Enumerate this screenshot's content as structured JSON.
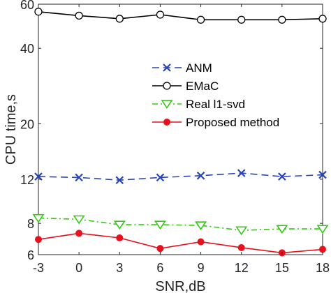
{
  "chart_data": {
    "type": "line",
    "title": "",
    "xlabel": "SNR,dB",
    "ylabel": "CPU time,s",
    "x": [
      -3,
      0,
      3,
      6,
      9,
      12,
      15,
      18
    ],
    "xticks": [
      -3,
      0,
      3,
      6,
      9,
      12,
      15,
      18
    ],
    "xtick_labels": [
      "-3",
      "0",
      "3",
      "6",
      "9",
      "12",
      "15",
      "18"
    ],
    "xlim": [
      -3,
      18
    ],
    "yscale": "log",
    "ylim": [
      6,
      60
    ],
    "yticks": [
      6,
      8,
      12,
      20,
      40,
      60
    ],
    "ytick_labels": [
      "6",
      "8",
      "12",
      "20",
      "40",
      "60"
    ],
    "grid": false,
    "legend_position": "center-right",
    "series": [
      {
        "name": "ANM",
        "values": [
          12.3,
          12.2,
          11.9,
          12.2,
          12.4,
          12.7,
          12.3,
          12.5
        ],
        "color": "#2a45b8",
        "line_style": "dashed",
        "marker": "x"
      },
      {
        "name": "EMaC",
        "values": [
          56,
          54,
          52.5,
          54.5,
          52,
          52,
          52,
          52.5
        ],
        "color": "#000000",
        "line_style": "solid",
        "marker": "open-circle"
      },
      {
        "name": "Real l1-svd",
        "values": [
          8.4,
          8.3,
          7.9,
          7.9,
          7.85,
          7.5,
          7.6,
          7.6
        ],
        "color": "#35c814",
        "line_style": "dash-dot",
        "marker": "open-triangle-down"
      },
      {
        "name": "Proposed method",
        "values": [
          6.9,
          7.3,
          7.0,
          6.35,
          6.75,
          6.4,
          6.1,
          6.3
        ],
        "color": "#e8101c",
        "line_style": "solid",
        "marker": "filled-circle"
      }
    ]
  }
}
